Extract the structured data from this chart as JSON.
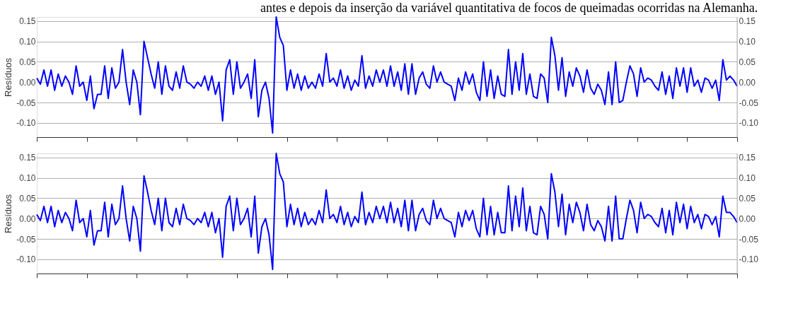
{
  "chart_data": [
    {
      "type": "line",
      "title": "antes e depois da inserção da variável quantitativa de focos de queimadas ocorridas na Alemanha.",
      "ylabel": "Resíduos",
      "ylim": [
        -0.135,
        0.16
      ],
      "yticks": [
        {
          "value": -0.1,
          "label": "-0.10"
        },
        {
          "value": -0.05,
          "label": "-0.05"
        },
        {
          "value": 0,
          "label": "0.00"
        },
        {
          "value": 0.05,
          "label": "0.05"
        },
        {
          "value": 0.1,
          "label": "0.10"
        },
        {
          "value": 0.15,
          "label": "0.15"
        }
      ],
      "y2lim": [
        -0.135,
        0.16
      ],
      "y2ticks": [
        {
          "value": -0.1,
          "label": "-0.10"
        },
        {
          "value": -0.05,
          "label": "-0.05"
        },
        {
          "value": 0,
          "label": "0.00"
        },
        {
          "value": 0.05,
          "label": "0.05"
        },
        {
          "value": 0.1,
          "label": "0.10"
        },
        {
          "value": 0.15,
          "label": "0.15"
        }
      ],
      "grid": "y",
      "tick_labels": "y",
      "line_style": "solid",
      "marker": "none",
      "series": [
        {
          "color": "#0000ff",
          "values": [
            0.01,
            -0.005,
            0.03,
            -0.01,
            0.03,
            -0.02,
            0.02,
            -0.01,
            0.015,
            0.0,
            -0.03,
            0.04,
            -0.01,
            0.0,
            -0.045,
            0.015,
            -0.065,
            -0.03,
            -0.03,
            0.04,
            -0.04,
            0.035,
            -0.015,
            0.0,
            0.08,
            0.0,
            -0.055,
            0.03,
            0.0,
            -0.08,
            0.1,
            0.06,
            0.02,
            -0.015,
            0.05,
            -0.03,
            0.04,
            -0.01,
            -0.02,
            0.025,
            -0.015,
            0.04,
            0.0,
            -0.005,
            -0.015,
            0.0,
            -0.01,
            0.015,
            -0.02,
            0.015,
            -0.03,
            0.0,
            -0.095,
            0.03,
            0.055,
            -0.03,
            0.05,
            -0.015,
            0.0,
            0.02,
            -0.04,
            0.055,
            -0.085,
            -0.02,
            0.0,
            -0.04,
            -0.125,
            0.16,
            0.11,
            0.09,
            -0.02,
            0.03,
            -0.015,
            0.02,
            -0.02,
            0.015,
            -0.015,
            0.0,
            -0.015,
            0.02,
            -0.01,
            0.07,
            0.0,
            0.01,
            -0.01,
            0.03,
            -0.015,
            0.015,
            -0.02,
            0.005,
            -0.01,
            0.065,
            -0.015,
            0.015,
            -0.01,
            0.03,
            0.0,
            0.03,
            -0.01,
            0.04,
            -0.01,
            0.025,
            -0.02,
            0.045,
            -0.03,
            0.045,
            -0.03,
            0.01,
            0.025,
            -0.005,
            -0.015,
            0.04,
            0.0,
            0.025,
            0.0,
            -0.005,
            -0.01,
            -0.045,
            0.01,
            -0.02,
            0.025,
            -0.005,
            0.02,
            -0.025,
            -0.045,
            0.05,
            -0.035,
            0.03,
            -0.04,
            0.015,
            -0.03,
            -0.035,
            0.08,
            -0.03,
            0.05,
            -0.02,
            0.07,
            -0.03,
            0.02,
            -0.035,
            -0.04,
            0.02,
            0.01,
            -0.05,
            0.11,
            0.065,
            -0.02,
            0.06,
            -0.035,
            0.025,
            -0.01,
            0.035,
            0.015,
            -0.025,
            0.03,
            -0.015,
            -0.03,
            -0.005,
            -0.02,
            -0.055,
            0.025,
            -0.055,
            0.05,
            -0.05,
            -0.045,
            0.0,
            0.04,
            0.02,
            -0.035,
            0.035,
            0.0,
            0.01,
            0.005,
            -0.01,
            -0.02,
            0.025,
            -0.03,
            0.015,
            -0.04,
            0.035,
            -0.01,
            0.035,
            -0.025,
            0.035,
            -0.01,
            0.005,
            -0.025,
            0.01,
            0.005,
            -0.015,
            0.005,
            -0.045,
            0.055,
            0.005,
            0.015,
            0.005,
            -0.01
          ]
        }
      ]
    },
    {
      "type": "line",
      "ylabel": "Resíduos",
      "ylim": [
        -0.135,
        0.16
      ],
      "yticks": [
        {
          "value": -0.1,
          "label": "-0.10"
        },
        {
          "value": -0.05,
          "label": "-0.05"
        },
        {
          "value": 0,
          "label": "0.00"
        },
        {
          "value": 0.05,
          "label": "0.05"
        },
        {
          "value": 0.1,
          "label": "0.10"
        },
        {
          "value": 0.15,
          "label": "0.15"
        }
      ],
      "y2lim": [
        -0.135,
        0.16
      ],
      "y2ticks": [
        {
          "value": -0.1,
          "label": "-0.10"
        },
        {
          "value": -0.05,
          "label": "-0.05"
        },
        {
          "value": 0,
          "label": "0.00"
        },
        {
          "value": 0.05,
          "label": "0.05"
        },
        {
          "value": 0.1,
          "label": "0.10"
        },
        {
          "value": 0.15,
          "label": "0.15"
        }
      ],
      "grid": "y",
      "tick_labels": "y",
      "line_style": "solid",
      "marker": "none",
      "series": [
        {
          "color": "#0000ff",
          "values": [
            0.01,
            -0.005,
            0.03,
            -0.01,
            0.03,
            -0.02,
            0.02,
            -0.01,
            0.015,
            0.0,
            -0.03,
            0.045,
            -0.01,
            0.0,
            -0.045,
            0.02,
            -0.065,
            -0.03,
            -0.03,
            0.04,
            -0.045,
            0.035,
            -0.015,
            0.0,
            0.08,
            0.0,
            -0.055,
            0.03,
            0.0,
            -0.08,
            0.105,
            0.065,
            0.02,
            -0.015,
            0.05,
            -0.03,
            0.05,
            -0.01,
            -0.02,
            0.025,
            -0.015,
            0.035,
            0.0,
            -0.005,
            -0.015,
            0.0,
            -0.01,
            0.015,
            -0.02,
            0.015,
            -0.035,
            0.0,
            -0.095,
            0.03,
            0.055,
            -0.03,
            0.05,
            -0.015,
            0.0,
            0.025,
            -0.045,
            0.055,
            -0.085,
            -0.02,
            0.0,
            -0.04,
            -0.125,
            0.16,
            0.11,
            0.09,
            -0.02,
            0.035,
            -0.015,
            0.025,
            -0.02,
            0.015,
            -0.015,
            0.0,
            -0.015,
            0.02,
            -0.01,
            0.07,
            0.0,
            0.01,
            -0.01,
            0.03,
            -0.015,
            0.015,
            -0.02,
            0.005,
            -0.01,
            0.065,
            -0.015,
            0.015,
            -0.01,
            0.03,
            0.0,
            0.03,
            -0.01,
            0.04,
            -0.01,
            0.025,
            -0.02,
            0.045,
            -0.03,
            0.045,
            -0.03,
            0.01,
            0.025,
            -0.005,
            -0.015,
            0.045,
            0.0,
            0.025,
            0.0,
            -0.005,
            -0.01,
            -0.045,
            0.015,
            -0.02,
            0.02,
            -0.005,
            0.02,
            -0.025,
            -0.045,
            0.05,
            -0.04,
            0.03,
            -0.04,
            0.015,
            -0.035,
            -0.035,
            0.08,
            -0.03,
            0.055,
            -0.02,
            0.075,
            -0.03,
            0.03,
            -0.035,
            -0.04,
            0.03,
            0.01,
            -0.05,
            0.11,
            0.065,
            -0.02,
            0.06,
            -0.04,
            0.035,
            -0.01,
            0.04,
            0.015,
            -0.03,
            0.035,
            -0.015,
            -0.03,
            -0.005,
            -0.02,
            -0.055,
            0.03,
            -0.055,
            0.055,
            -0.05,
            -0.05,
            0.0,
            0.045,
            0.02,
            -0.035,
            0.04,
            0.0,
            0.01,
            0.005,
            -0.01,
            -0.02,
            0.025,
            -0.035,
            0.02,
            -0.04,
            0.04,
            -0.01,
            0.035,
            -0.025,
            0.03,
            -0.01,
            0.01,
            -0.025,
            0.01,
            0.005,
            -0.015,
            0.005,
            -0.045,
            0.055,
            0.015,
            0.015,
            0.005,
            -0.01
          ]
        }
      ]
    }
  ]
}
